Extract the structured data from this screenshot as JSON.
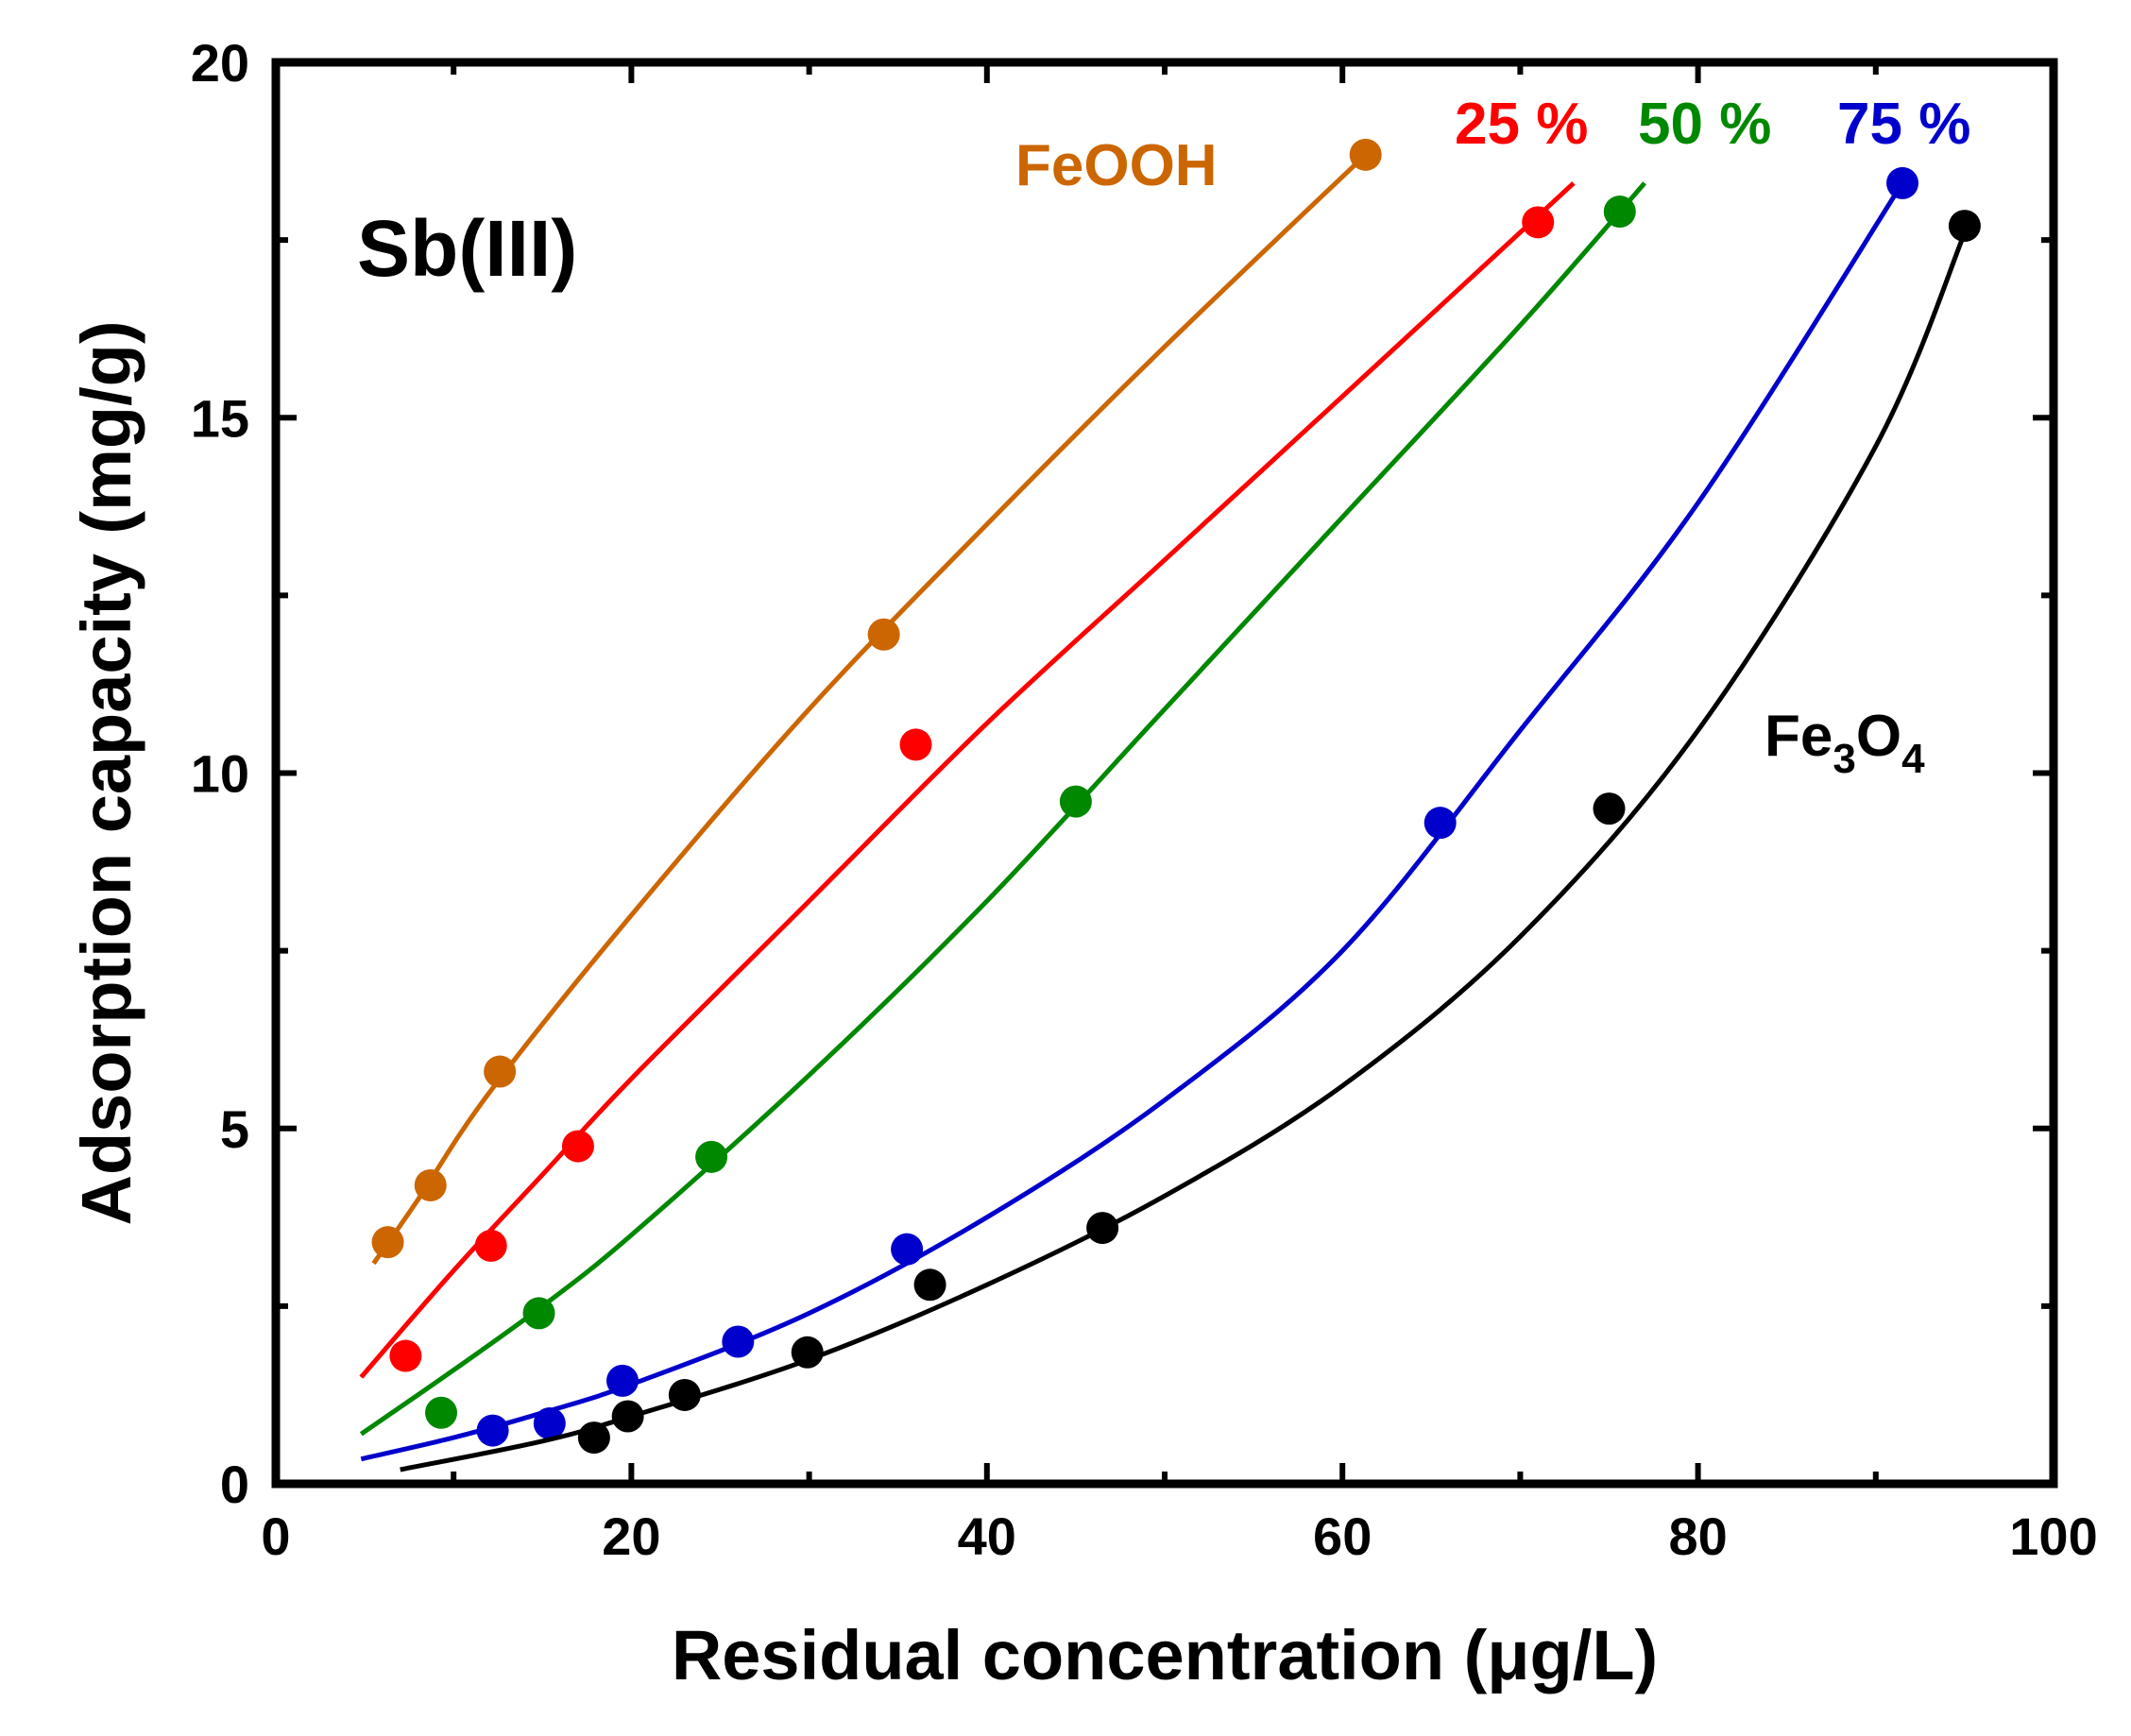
{
  "chart_data": {
    "type": "scatter",
    "title": "",
    "panel_label": "Sb(III)",
    "xlabel": "Residual concentration (μg/L)",
    "ylabel": "Adsorption capacity (mg/g)",
    "xlim": [
      0,
      100
    ],
    "ylim": [
      0,
      20
    ],
    "x_ticks": [
      0,
      20,
      40,
      60,
      80,
      100
    ],
    "y_ticks": [
      0,
      5,
      10,
      15,
      20
    ],
    "x_tick_labels": [
      "0",
      "20",
      "40",
      "60",
      "80",
      "100"
    ],
    "y_tick_labels": [
      "0",
      "5",
      "10",
      "15",
      "20"
    ],
    "grid": false,
    "legend": "inline labels at curve ends",
    "series": [
      {
        "name": "FeOOH",
        "color": "#cc6600",
        "points": [
          [
            6.3,
            3.4
          ],
          [
            8.7,
            4.2
          ],
          [
            12.6,
            5.8
          ],
          [
            34.2,
            11.95
          ],
          [
            61.3,
            18.7
          ]
        ],
        "fit": [
          [
            5.5,
            3.1
          ],
          [
            8.0,
            4.0
          ],
          [
            12.0,
            5.5
          ],
          [
            20.0,
            8.0
          ],
          [
            30.0,
            10.9
          ],
          [
            40.0,
            13.5
          ],
          [
            50.0,
            16.0
          ],
          [
            61.3,
            18.7
          ]
        ]
      },
      {
        "name": "25 %",
        "color": "#ff0000",
        "points": [
          [
            7.3,
            1.8
          ],
          [
            12.1,
            3.35
          ],
          [
            17.0,
            4.75
          ],
          [
            36.0,
            10.4
          ],
          [
            71.0,
            17.75
          ]
        ],
        "fit": [
          [
            4.8,
            1.5
          ],
          [
            10.0,
            3.0
          ],
          [
            15.0,
            4.35
          ],
          [
            20.0,
            5.7
          ],
          [
            30.0,
            8.2
          ],
          [
            40.0,
            10.7
          ],
          [
            50.0,
            13.0
          ],
          [
            60.0,
            15.3
          ],
          [
            73.0,
            18.3
          ]
        ]
      },
      {
        "name": "50 %",
        "color": "#008800",
        "points": [
          [
            9.3,
            1.0
          ],
          [
            14.8,
            2.4
          ],
          [
            24.5,
            4.6
          ],
          [
            45.0,
            9.6
          ],
          [
            75.6,
            17.9
          ]
        ],
        "fit": [
          [
            4.8,
            0.7
          ],
          [
            10.0,
            1.6
          ],
          [
            15.0,
            2.5
          ],
          [
            20.0,
            3.5
          ],
          [
            30.0,
            5.75
          ],
          [
            40.0,
            8.2
          ],
          [
            50.0,
            10.9
          ],
          [
            60.0,
            13.6
          ],
          [
            70.0,
            16.3
          ],
          [
            77.0,
            18.3
          ]
        ]
      },
      {
        "name": "75 %",
        "color": "#0000cc",
        "points": [
          [
            12.2,
            0.75
          ],
          [
            15.4,
            0.85
          ],
          [
            19.5,
            1.45
          ],
          [
            26.0,
            2.0
          ],
          [
            35.5,
            3.3
          ],
          [
            65.5,
            9.3
          ],
          [
            91.5,
            18.3
          ]
        ],
        "fit": [
          [
            4.8,
            0.35
          ],
          [
            10.0,
            0.65
          ],
          [
            15.0,
            1.0
          ],
          [
            20.0,
            1.4
          ],
          [
            30.0,
            2.4
          ],
          [
            40.0,
            3.75
          ],
          [
            50.0,
            5.4
          ],
          [
            60.0,
            7.5
          ],
          [
            70.0,
            10.6
          ],
          [
            80.0,
            13.8
          ],
          [
            91.5,
            18.3
          ]
        ]
      },
      {
        "name": "Fe3O4",
        "name_parts": [
          "Fe",
          "3",
          "O",
          "4"
        ],
        "color": "#000000",
        "points": [
          [
            17.9,
            0.65
          ],
          [
            19.8,
            0.95
          ],
          [
            23.0,
            1.25
          ],
          [
            29.9,
            1.85
          ],
          [
            36.8,
            2.8
          ],
          [
            46.5,
            3.6
          ],
          [
            75.0,
            9.5
          ],
          [
            95.0,
            17.7
          ]
        ],
        "fit": [
          [
            7.0,
            0.2
          ],
          [
            15.0,
            0.6
          ],
          [
            20.0,
            0.95
          ],
          [
            30.0,
            1.75
          ],
          [
            40.0,
            2.8
          ],
          [
            50.0,
            4.05
          ],
          [
            60.0,
            5.6
          ],
          [
            70.0,
            7.7
          ],
          [
            80.0,
            10.6
          ],
          [
            90.0,
            14.6
          ],
          [
            95.0,
            17.6
          ]
        ]
      }
    ]
  }
}
